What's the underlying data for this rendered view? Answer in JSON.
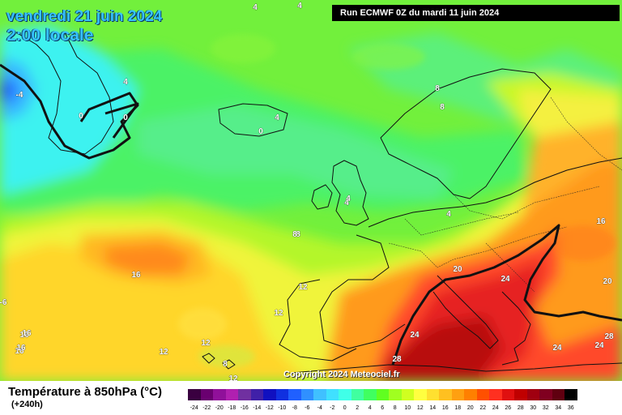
{
  "header": {
    "date_label": "vendredi 21 juin 2024",
    "time_label": "2:00 locale",
    "run_label": "Run ECMWF 0Z du mardi 11 juin 2024"
  },
  "footer": {
    "copyright": "Copyright 2024 Meteociel.fr",
    "variable_label": "Température à 850hPa (°C)",
    "lead_label": "(+240h)"
  },
  "legend": {
    "ticks": [
      "-24",
      "-22",
      "-20",
      "-18",
      "-16",
      "-14",
      "-12",
      "-10",
      "-8",
      "-6",
      "-4",
      "-2",
      "0",
      "2",
      "4",
      "6",
      "8",
      "10",
      "12",
      "14",
      "16",
      "18",
      "20",
      "22",
      "24",
      "26",
      "28",
      "30",
      "32",
      "34",
      "36"
    ],
    "colors": [
      "#3a0040",
      "#6a0070",
      "#90109a",
      "#b020b0",
      "#7030a0",
      "#4020a8",
      "#1010c0",
      "#1030e0",
      "#2060ff",
      "#3090ff",
      "#40c0ff",
      "#40e0ff",
      "#40ffe8",
      "#40ffa0",
      "#40ff60",
      "#60ff20",
      "#a0ff20",
      "#d0ff20",
      "#ffff40",
      "#ffe030",
      "#ffc020",
      "#ffa010",
      "#ff8000",
      "#ff5000",
      "#ff3020",
      "#e01010",
      "#c00000",
      "#a00010",
      "#800020",
      "#600010",
      "#000000"
    ]
  },
  "contour_labels": [
    {
      "text": "4"
    },
    {
      "text": "4"
    },
    {
      "text": "4"
    },
    {
      "text": "-4"
    },
    {
      "text": "0"
    },
    {
      "text": "0"
    },
    {
      "text": "0"
    },
    {
      "text": "4"
    },
    {
      "text": "8"
    },
    {
      "text": "8"
    },
    {
      "text": "8"
    },
    {
      "text": "4"
    },
    {
      "text": "4"
    },
    {
      "text": "4"
    },
    {
      "text": "8"
    },
    {
      "text": "16"
    },
    {
      "text": "16"
    },
    {
      "text": "16"
    },
    {
      "text": "16"
    },
    {
      "text": "20"
    },
    {
      "text": "24"
    },
    {
      "text": "20"
    },
    {
      "text": "24"
    },
    {
      "text": "24"
    },
    {
      "text": "28"
    },
    {
      "text": "24"
    },
    {
      "text": "28"
    },
    {
      "text": "12"
    },
    {
      "text": "12"
    },
    {
      "text": "12"
    },
    {
      "text": "12"
    },
    {
      "text": "8"
    },
    {
      "text": "-6"
    },
    {
      "text": "16"
    },
    {
      "text": "16"
    },
    {
      "text": "12"
    }
  ]
}
